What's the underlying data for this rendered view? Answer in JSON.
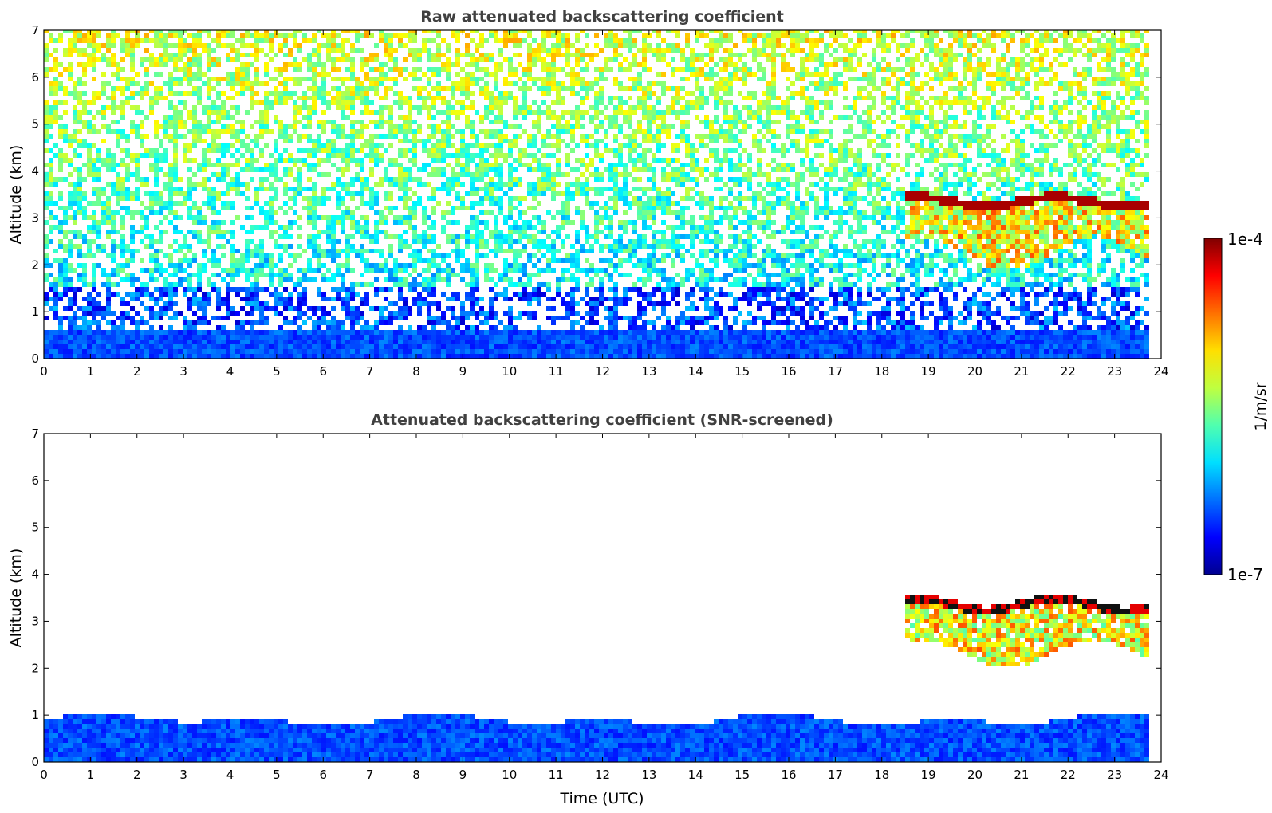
{
  "figure": {
    "shared_xlabel": "Time (UTC)"
  },
  "chart_data": [
    {
      "type": "heatmap",
      "title": "Raw attenuated backscattering coefficient",
      "xlabel": "",
      "ylabel": "Altitude (km)",
      "xlim": [
        0,
        24
      ],
      "ylim": [
        0,
        7
      ],
      "x_ticks": [
        "0",
        "1",
        "2",
        "3",
        "4",
        "5",
        "6",
        "7",
        "8",
        "9",
        "10",
        "11",
        "12",
        "13",
        "14",
        "15",
        "16",
        "17",
        "18",
        "19",
        "20",
        "21",
        "22",
        "23",
        "24"
      ],
      "y_ticks": [
        "0",
        "1",
        "2",
        "3",
        "4",
        "5",
        "6",
        "7"
      ],
      "data_end_time": 23.8,
      "features": {
        "boundary_layer_top_km": 0.65,
        "noise_region_km": [
          0.65,
          7
        ],
        "cloud": {
          "start_time": 18.5,
          "end_time": 23.8,
          "top_km": [
            3.25,
            3.45
          ],
          "base_km": [
            1.9,
            2.6
          ]
        }
      }
    },
    {
      "type": "heatmap",
      "title": "Attenuated backscattering coefficient (SNR-screened)",
      "xlabel": "Time (UTC)",
      "ylabel": "Altitude (km)",
      "xlim": [
        0,
        24
      ],
      "ylim": [
        0,
        7
      ],
      "x_ticks": [
        "0",
        "1",
        "2",
        "3",
        "4",
        "5",
        "6",
        "7",
        "8",
        "9",
        "10",
        "11",
        "12",
        "13",
        "14",
        "15",
        "16",
        "17",
        "18",
        "19",
        "20",
        "21",
        "22",
        "23",
        "24"
      ],
      "y_ticks": [
        "0",
        "1",
        "2",
        "3",
        "4",
        "5",
        "6",
        "7"
      ],
      "data_end_time": 23.8,
      "features": {
        "boundary_layer_top_km": [
          0.75,
          1.05
        ],
        "cloud": {
          "start_time": 18.5,
          "end_time": 23.8,
          "top_km": [
            3.2,
            3.5
          ],
          "base_km": [
            2.0,
            2.6
          ]
        }
      }
    }
  ],
  "colorbar": {
    "label": "1/m/sr",
    "max_label": "1e-4",
    "min_label": "1e-7",
    "scale": "log",
    "colormap": "jet",
    "colors": [
      "#00008f",
      "#0000ff",
      "#0070ff",
      "#00dfff",
      "#50ffaf",
      "#bfff40",
      "#ffdf00",
      "#ff7000",
      "#ff0000",
      "#800000"
    ]
  }
}
